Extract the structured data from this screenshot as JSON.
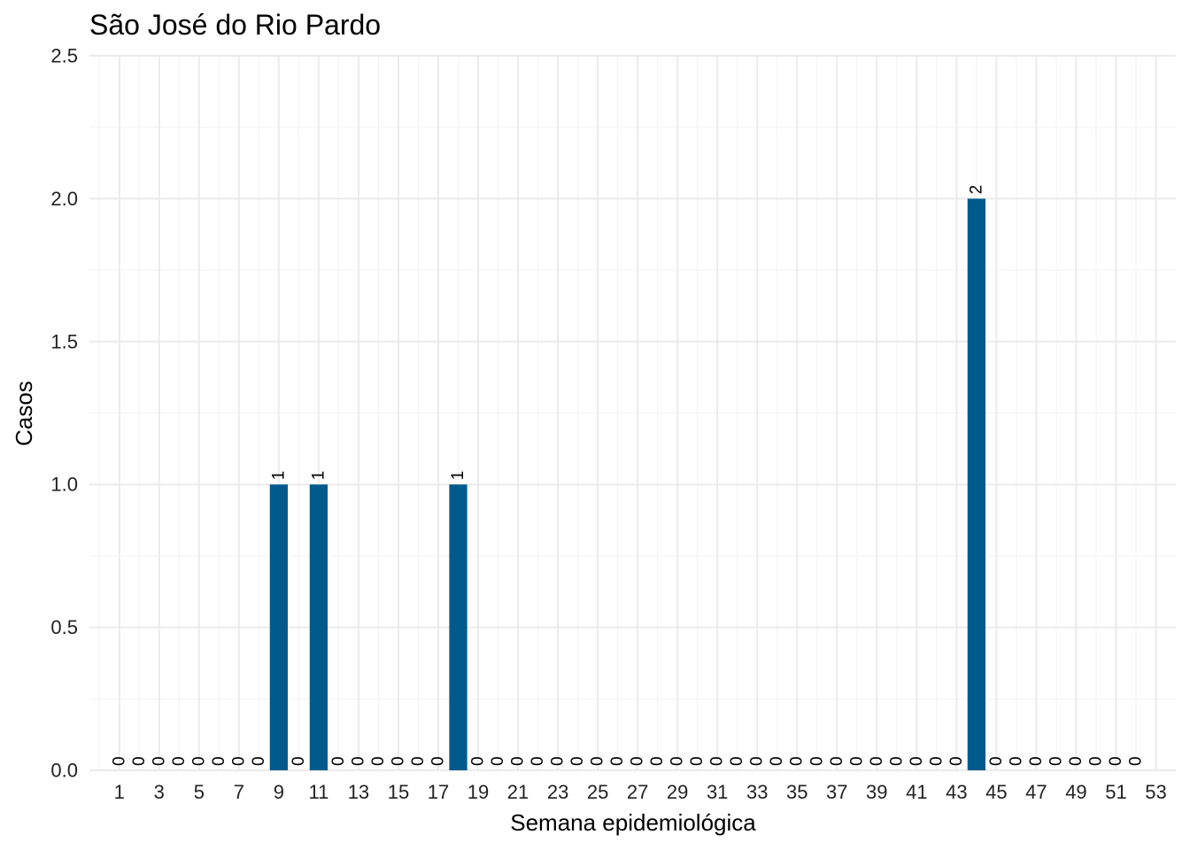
{
  "chart_data": {
    "type": "bar",
    "title": "São José do Rio Pardo",
    "xlabel": "Semana epidemiológica",
    "ylabel": "Casos",
    "x": [
      1,
      2,
      3,
      4,
      5,
      6,
      7,
      8,
      9,
      10,
      11,
      12,
      13,
      14,
      15,
      16,
      17,
      18,
      19,
      20,
      21,
      22,
      23,
      24,
      25,
      26,
      27,
      28,
      29,
      30,
      31,
      32,
      33,
      34,
      35,
      36,
      37,
      38,
      39,
      40,
      41,
      42,
      43,
      44,
      45,
      46,
      47,
      48,
      49,
      50,
      51,
      52
    ],
    "values": [
      0,
      0,
      0,
      0,
      0,
      0,
      0,
      0,
      1,
      0,
      1,
      0,
      0,
      0,
      0,
      0,
      0,
      1,
      0,
      0,
      0,
      0,
      0,
      0,
      0,
      0,
      0,
      0,
      0,
      0,
      0,
      0,
      0,
      0,
      0,
      0,
      0,
      0,
      0,
      0,
      0,
      0,
      0,
      2,
      0,
      0,
      0,
      0,
      0,
      0,
      0,
      0
    ],
    "x_ticks": [
      1,
      3,
      5,
      7,
      9,
      11,
      13,
      15,
      17,
      19,
      21,
      23,
      25,
      27,
      29,
      31,
      33,
      35,
      37,
      39,
      41,
      43,
      45,
      47,
      49,
      51,
      53
    ],
    "y_ticks": [
      "0.0",
      "0.5",
      "1.0",
      "1.5",
      "2.0",
      "2.5"
    ],
    "xlim": [
      -0.5,
      54
    ],
    "ylim": [
      0,
      2.5
    ],
    "grid": true,
    "bar_color": "#005A8C"
  }
}
